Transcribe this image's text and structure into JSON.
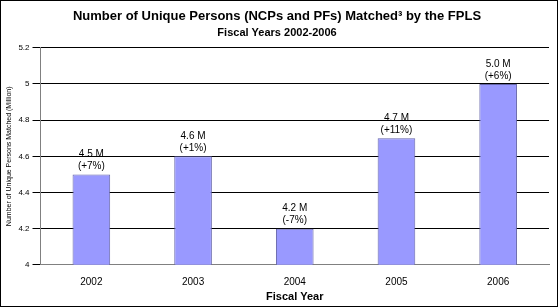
{
  "chart_data": {
    "type": "bar",
    "title": "Number of Unique Persons (NCPs and PFs) Matched³ by the FPLS",
    "subtitle": "Fiscal Years 2002-2006",
    "x_label": "Fiscal Year",
    "y_label": "Number of Unique Persons Matched (Million)",
    "categories": [
      "2002",
      "2003",
      "2004",
      "2005",
      "2006"
    ],
    "values": [
      4.5,
      4.6,
      4.2,
      4.7,
      5.0
    ],
    "value_labels": [
      [
        "4.5 M",
        "(+7%)"
      ],
      [
        "4.6 M",
        "(+1%)"
      ],
      [
        "4.2 M",
        "(-7%)"
      ],
      [
        "4.7 M",
        "(+11%)"
      ],
      [
        "5.0 M",
        "(+6%)"
      ]
    ],
    "data_labels": true,
    "color": "#9999ff",
    "ylim": [
      4,
      5.2
    ],
    "yticks": [
      4,
      4.2,
      4.4,
      4.6,
      4.8,
      5,
      5.2
    ],
    "grid": true
  }
}
